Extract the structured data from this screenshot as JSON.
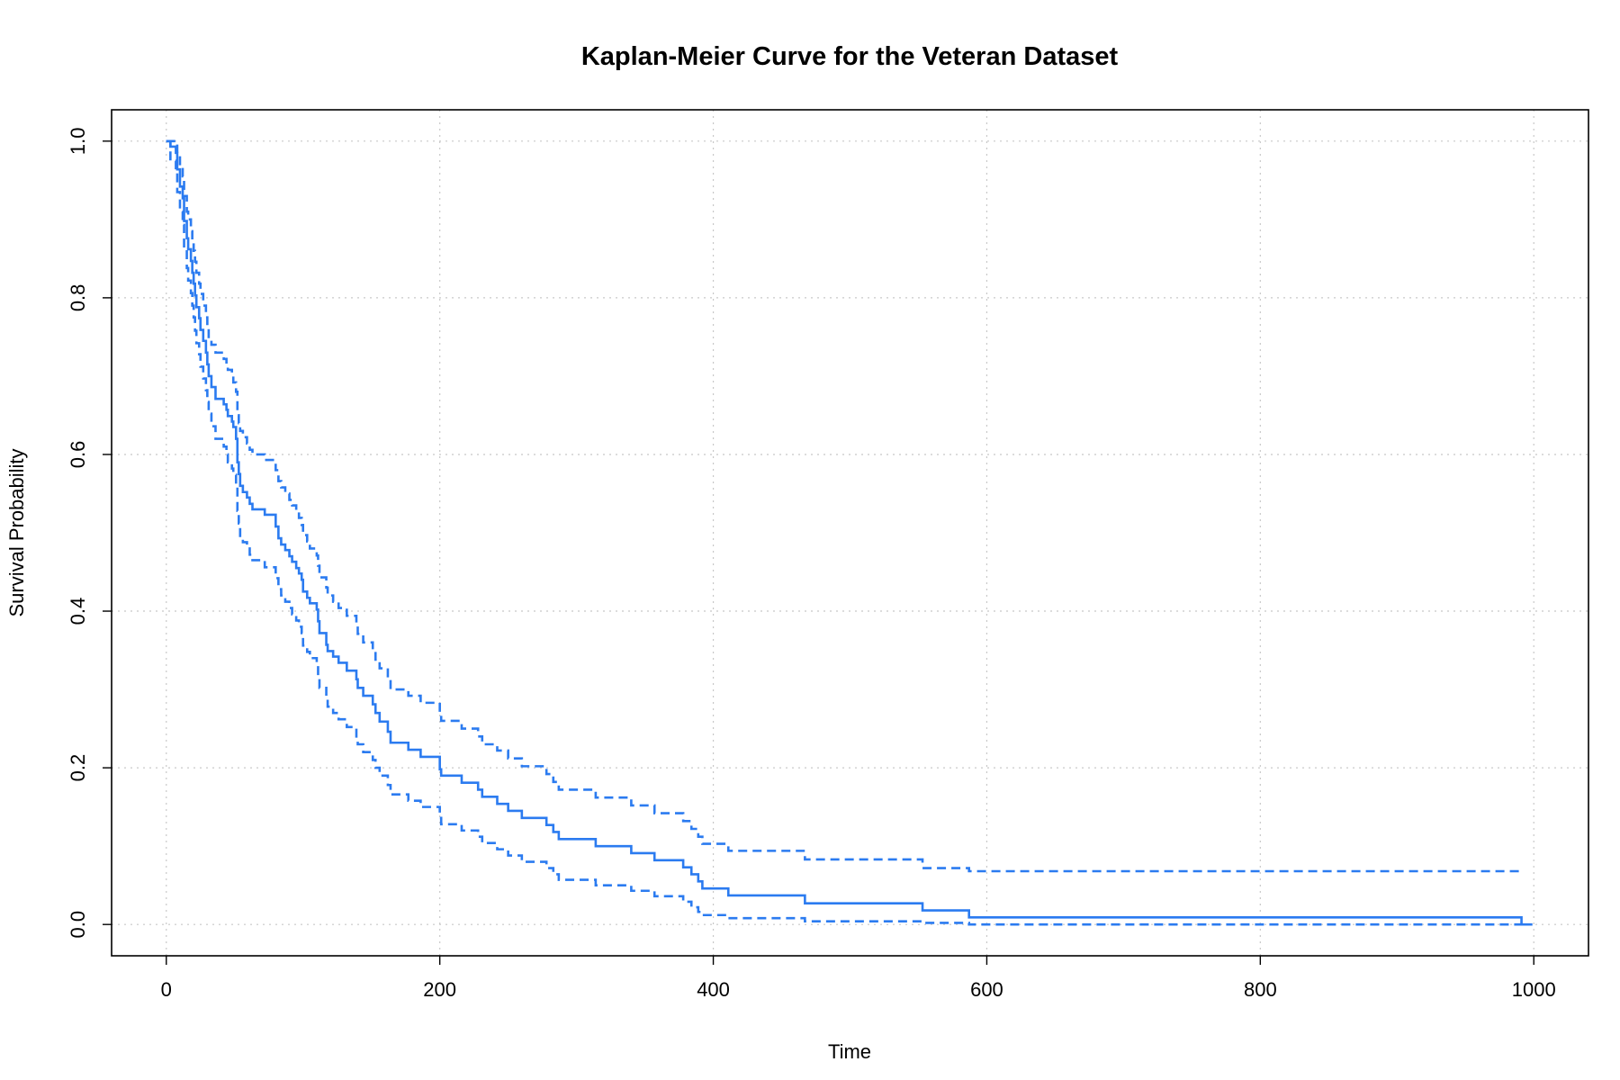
{
  "chart_data": {
    "type": "line",
    "title": "Kaplan-Meier Curve for the Veteran Dataset",
    "xlabel": "Time",
    "ylabel": "Survival Probability",
    "xlim": [
      -40,
      1040
    ],
    "ylim": [
      -0.04,
      1.04
    ],
    "x_ticks": [
      0,
      200,
      400,
      600,
      800,
      1000
    ],
    "y_ticks": [
      0.0,
      0.2,
      0.4,
      0.6,
      0.8,
      1.0
    ],
    "x_tick_labels": [
      "0",
      "200",
      "400",
      "600",
      "800",
      "1000"
    ],
    "y_tick_labels": [
      "0.0",
      "0.2",
      "0.4",
      "0.6",
      "0.8",
      "1.0"
    ],
    "grid": true,
    "step": true,
    "color": "#2b7bf0",
    "series": [
      {
        "style": "solid",
        "x": [
          0,
          3,
          7,
          8,
          10,
          12,
          13,
          15,
          16,
          18,
          19,
          20,
          21,
          22,
          24,
          25,
          27,
          29,
          30,
          31,
          33,
          36,
          42,
          44,
          45,
          48,
          49,
          51,
          52,
          53,
          54,
          56,
          59,
          61,
          63,
          72,
          80,
          82,
          84,
          87,
          90,
          92,
          95,
          97,
          99,
          100,
          103,
          105,
          110,
          111,
          112,
          117,
          118,
          122,
          126,
          132,
          139,
          140,
          144,
          151,
          153,
          156,
          162,
          164,
          177,
          186,
          200,
          201,
          216,
          228,
          231,
          242,
          250,
          260,
          278,
          283,
          287,
          314,
          340,
          357,
          378,
          384,
          389,
          392,
          411,
          467,
          553,
          587,
          991,
          999
        ],
        "y": [
          1.0,
          0.993,
          0.985,
          0.964,
          0.942,
          0.927,
          0.898,
          0.876,
          0.862,
          0.847,
          0.832,
          0.818,
          0.803,
          0.788,
          0.774,
          0.759,
          0.745,
          0.73,
          0.715,
          0.7,
          0.686,
          0.671,
          0.664,
          0.657,
          0.649,
          0.642,
          0.635,
          0.62,
          0.59,
          0.575,
          0.56,
          0.552,
          0.545,
          0.537,
          0.53,
          0.523,
          0.508,
          0.493,
          0.485,
          0.478,
          0.47,
          0.463,
          0.455,
          0.448,
          0.44,
          0.425,
          0.417,
          0.41,
          0.402,
          0.387,
          0.372,
          0.357,
          0.349,
          0.342,
          0.334,
          0.324,
          0.313,
          0.302,
          0.292,
          0.281,
          0.27,
          0.259,
          0.246,
          0.232,
          0.223,
          0.214,
          0.198,
          0.19,
          0.181,
          0.172,
          0.163,
          0.154,
          0.145,
          0.136,
          0.127,
          0.118,
          0.109,
          0.1,
          0.091,
          0.082,
          0.073,
          0.064,
          0.055,
          0.046,
          0.037,
          0.027,
          0.018,
          0.009,
          0.0,
          0.0
        ]
      },
      {
        "style": "dashed",
        "x": [
          0,
          3,
          7,
          8,
          10,
          12,
          13,
          15,
          16,
          18,
          19,
          20,
          21,
          22,
          24,
          25,
          27,
          29,
          30,
          31,
          33,
          36,
          42,
          44,
          45,
          48,
          49,
          51,
          52,
          53,
          54,
          56,
          59,
          61,
          63,
          72,
          80,
          82,
          84,
          87,
          90,
          92,
          95,
          97,
          99,
          100,
          103,
          105,
          110,
          111,
          112,
          117,
          118,
          122,
          126,
          132,
          139,
          140,
          144,
          151,
          153,
          156,
          162,
          164,
          177,
          186,
          200,
          201,
          216,
          228,
          231,
          242,
          250,
          260,
          278,
          283,
          287,
          314,
          340,
          357,
          378,
          384,
          389,
          392,
          411,
          467,
          553,
          587,
          991
        ],
        "y": [
          1.0,
          1.0,
          0.998,
          0.985,
          0.968,
          0.955,
          0.93,
          0.91,
          0.9,
          0.885,
          0.87,
          0.86,
          0.846,
          0.832,
          0.818,
          0.805,
          0.79,
          0.775,
          0.76,
          0.75,
          0.74,
          0.73,
          0.722,
          0.715,
          0.708,
          0.7,
          0.692,
          0.68,
          0.65,
          0.64,
          0.63,
          0.622,
          0.614,
          0.606,
          0.6,
          0.593,
          0.58,
          0.566,
          0.558,
          0.55,
          0.542,
          0.535,
          0.527,
          0.519,
          0.51,
          0.497,
          0.489,
          0.48,
          0.471,
          0.458,
          0.443,
          0.43,
          0.42,
          0.412,
          0.404,
          0.394,
          0.382,
          0.371,
          0.36,
          0.349,
          0.338,
          0.327,
          0.314,
          0.3,
          0.292,
          0.283,
          0.268,
          0.26,
          0.25,
          0.24,
          0.23,
          0.222,
          0.212,
          0.202,
          0.192,
          0.182,
          0.172,
          0.162,
          0.152,
          0.142,
          0.132,
          0.122,
          0.112,
          0.103,
          0.094,
          0.083,
          0.072,
          0.068,
          0.068
        ]
      },
      {
        "style": "dashed",
        "x": [
          0,
          3,
          7,
          8,
          10,
          12,
          13,
          15,
          16,
          18,
          19,
          20,
          21,
          22,
          24,
          25,
          27,
          29,
          30,
          31,
          33,
          36,
          42,
          44,
          45,
          48,
          49,
          51,
          52,
          53,
          54,
          56,
          59,
          61,
          63,
          72,
          80,
          82,
          84,
          87,
          90,
          92,
          95,
          97,
          99,
          100,
          103,
          105,
          110,
          111,
          112,
          117,
          118,
          122,
          126,
          132,
          139,
          140,
          144,
          151,
          153,
          156,
          162,
          164,
          177,
          186,
          200,
          201,
          216,
          228,
          231,
          242,
          250,
          260,
          278,
          283,
          287,
          314,
          340,
          357,
          378,
          384,
          389,
          392,
          411,
          467,
          553,
          587,
          991
        ],
        "y": [
          1.0,
          0.975,
          0.96,
          0.935,
          0.91,
          0.893,
          0.862,
          0.838,
          0.822,
          0.806,
          0.79,
          0.775,
          0.758,
          0.742,
          0.728,
          0.712,
          0.697,
          0.682,
          0.667,
          0.652,
          0.636,
          0.62,
          0.61,
          0.6,
          0.59,
          0.582,
          0.574,
          0.56,
          0.528,
          0.512,
          0.496,
          0.488,
          0.48,
          0.472,
          0.465,
          0.456,
          0.442,
          0.428,
          0.42,
          0.412,
          0.404,
          0.396,
          0.388,
          0.38,
          0.372,
          0.356,
          0.348,
          0.34,
          0.332,
          0.318,
          0.302,
          0.287,
          0.278,
          0.27,
          0.262,
          0.252,
          0.24,
          0.23,
          0.22,
          0.21,
          0.2,
          0.19,
          0.178,
          0.166,
          0.158,
          0.15,
          0.136,
          0.128,
          0.12,
          0.112,
          0.104,
          0.096,
          0.088,
          0.08,
          0.072,
          0.064,
          0.057,
          0.05,
          0.043,
          0.036,
          0.029,
          0.022,
          0.016,
          0.012,
          0.008,
          0.004,
          0.002,
          0.0,
          0.0
        ]
      }
    ]
  }
}
